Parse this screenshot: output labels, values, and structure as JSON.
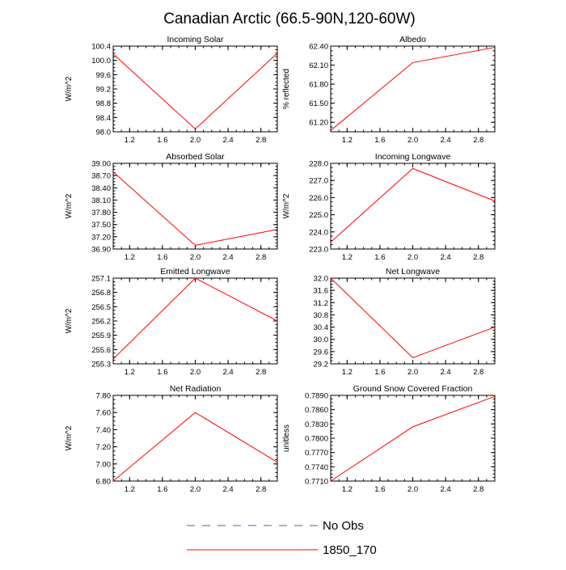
{
  "page": {
    "title": "Canadian Arctic (66.5-90N,120-60W)"
  },
  "legend": [
    {
      "name": "No Obs",
      "color": "#5a5aa8",
      "dash": true
    },
    {
      "name": "1850_170",
      "color": "#ff0000",
      "dash": false
    }
  ],
  "chart_data": [
    {
      "type": "line",
      "title": "Incoming Solar",
      "xlabel": "",
      "ylabel": "W/m^2",
      "xlim": [
        1.0,
        3.0
      ],
      "ylim": [
        98.0,
        100.4
      ],
      "xticks": [
        "1.2",
        "1.6",
        "2.0",
        "2.4",
        "2.8"
      ],
      "yticks": [
        "98.0",
        "98.4",
        "98.8",
        "99.2",
        "99.6",
        "100.0",
        "100.4"
      ],
      "series": [
        {
          "name": "1850_170",
          "color": "#ff0000",
          "x": [
            1.0,
            2.0,
            3.0
          ],
          "values": [
            100.18,
            98.08,
            100.2
          ]
        }
      ]
    },
    {
      "type": "line",
      "title": "Albedo",
      "xlabel": "",
      "ylabel": "% reflected",
      "xlim": [
        1.0,
        3.0
      ],
      "ylim": [
        61.05,
        62.4
      ],
      "xticks": [
        "1.2",
        "1.6",
        "2.0",
        "2.4",
        "2.8"
      ],
      "yticks": [
        "61.20",
        "61.50",
        "61.80",
        "62.10",
        "62.40"
      ],
      "series": [
        {
          "name": "1850_170",
          "color": "#ff0000",
          "x": [
            1.0,
            2.0,
            3.0
          ],
          "values": [
            61.07,
            62.14,
            62.38
          ]
        }
      ]
    },
    {
      "type": "line",
      "title": "Absorbed Solar",
      "xlabel": "",
      "ylabel": "W/m^2",
      "xlim": [
        1.0,
        3.0
      ],
      "ylim": [
        36.9,
        39.0
      ],
      "xticks": [
        "1.2",
        "1.6",
        "2.0",
        "2.4",
        "2.8"
      ],
      "yticks": [
        "36.90",
        "37.20",
        "37.50",
        "37.80",
        "38.10",
        "38.40",
        "38.70",
        "39.00"
      ],
      "series": [
        {
          "name": "1850_170",
          "color": "#ff0000",
          "x": [
            1.0,
            2.0,
            3.0
          ],
          "values": [
            38.79,
            36.99,
            37.38
          ]
        }
      ]
    },
    {
      "type": "line",
      "title": "Incoming Longwave",
      "xlabel": "",
      "ylabel": "W/m^2",
      "xlim": [
        1.0,
        3.0
      ],
      "ylim": [
        223.0,
        228.0
      ],
      "xticks": [
        "1.2",
        "1.6",
        "2.0",
        "2.4",
        "2.8"
      ],
      "yticks": [
        "223.0",
        "224.0",
        "225.0",
        "226.0",
        "227.0",
        "228.0"
      ],
      "series": [
        {
          "name": "1850_170",
          "color": "#ff0000",
          "x": [
            1.0,
            2.0,
            3.0
          ],
          "values": [
            223.4,
            227.7,
            225.8
          ]
        }
      ]
    },
    {
      "type": "line",
      "title": "Emitted Longwave",
      "xlabel": "",
      "ylabel": "W/m^2",
      "xlim": [
        1.0,
        3.0
      ],
      "ylim": [
        255.3,
        257.1
      ],
      "xticks": [
        "1.2",
        "1.6",
        "2.0",
        "2.4",
        "2.8"
      ],
      "yticks": [
        "255.3",
        "255.6",
        "255.9",
        "256.2",
        "256.5",
        "256.8",
        "257.1"
      ],
      "series": [
        {
          "name": "1850_170",
          "color": "#ff0000",
          "x": [
            1.0,
            2.0,
            3.0
          ],
          "values": [
            255.4,
            257.1,
            256.2
          ]
        }
      ]
    },
    {
      "type": "line",
      "title": "Net Longwave",
      "xlabel": "",
      "ylabel": "",
      "xlim": [
        1.0,
        3.0
      ],
      "ylim": [
        29.2,
        32.0
      ],
      "xticks": [
        "1.2",
        "1.6",
        "2.0",
        "2.4",
        "2.8"
      ],
      "yticks": [
        "29.2",
        "29.6",
        "30.0",
        "30.4",
        "30.8",
        "31.2",
        "31.6",
        "32.0"
      ],
      "series": [
        {
          "name": "1850_170",
          "color": "#ff0000",
          "x": [
            1.0,
            2.0,
            3.0
          ],
          "values": [
            32.0,
            29.4,
            30.4
          ]
        }
      ]
    },
    {
      "type": "line",
      "title": "Net Radiation",
      "xlabel": "",
      "ylabel": "W/m^2",
      "xlim": [
        1.0,
        3.0
      ],
      "ylim": [
        6.8,
        7.8
      ],
      "xticks": [
        "1.2",
        "1.6",
        "2.0",
        "2.4",
        "2.8"
      ],
      "yticks": [
        "6.80",
        "7.00",
        "7.20",
        "7.40",
        "7.60",
        "7.80"
      ],
      "series": [
        {
          "name": "1850_170",
          "color": "#ff0000",
          "x": [
            1.0,
            2.0,
            3.0
          ],
          "values": [
            6.8,
            7.6,
            7.02
          ]
        }
      ]
    },
    {
      "type": "line",
      "title": "Ground Snow Covered Fraction",
      "xlabel": "",
      "ylabel": "unitless",
      "xlim": [
        1.0,
        3.0
      ],
      "ylim": [
        0.771,
        0.789
      ],
      "xticks": [
        "1.2",
        "1.6",
        "2.0",
        "2.4",
        "2.8"
      ],
      "yticks": [
        "0.7710",
        "0.7740",
        "0.7770",
        "0.7800",
        "0.7830",
        "0.7860",
        "0.7890"
      ],
      "series": [
        {
          "name": "1850_170",
          "color": "#ff0000",
          "x": [
            1.0,
            2.0,
            3.0
          ],
          "values": [
            0.771,
            0.7824,
            0.7888
          ]
        }
      ]
    }
  ]
}
